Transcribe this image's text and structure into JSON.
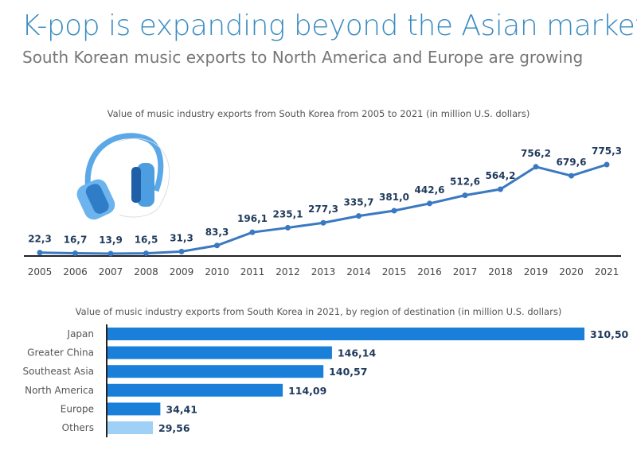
{
  "header": {
    "title": "K-pop is expanding beyond the Asian market",
    "subtitle": "South Korean music exports to North America and Europe are growing"
  },
  "colors": {
    "title": "#3a8cc0",
    "line": "#3a78c2",
    "bar": "#1a7fd9",
    "bar_others": "#9fd0f5",
    "value_label": "#1f3a5c"
  },
  "icons": [
    "headphones-icon"
  ],
  "chart_data": [
    {
      "type": "line",
      "title": "Value of music industry exports from South Korea from 2005 to 2021 (in million U.S. dollars)",
      "categories": [
        "2005",
        "2006",
        "2007",
        "2008",
        "2009",
        "2010",
        "2011",
        "2012",
        "2013",
        "2014",
        "2015",
        "2016",
        "2017",
        "2018",
        "2019",
        "2020",
        "2021"
      ],
      "values": [
        22.3,
        16.7,
        13.9,
        16.5,
        31.3,
        83.3,
        196.1,
        235.1,
        277.3,
        335.7,
        381.0,
        442.6,
        512.6,
        564.2,
        756.2,
        679.6,
        775.3
      ],
      "labels": [
        "22,3",
        "16,7",
        "13,9",
        "16,5",
        "31,3",
        "83,3",
        "196,1",
        "235,1",
        "277,3",
        "335,7",
        "381,0",
        "442,6",
        "512,6",
        "564,2",
        "756,2",
        "679,6",
        "775,3"
      ],
      "grid": false
    },
    {
      "type": "bar",
      "orientation": "horizontal",
      "title": "Value of music industry exports from South Korea in 2021, by region of destination (in million U.S. dollars)",
      "categories": [
        "Japan",
        "Greater China",
        "Southeast Asia",
        "North America",
        "Europe",
        "Others"
      ],
      "values": [
        310.5,
        146.14,
        140.57,
        114.09,
        34.41,
        29.56
      ],
      "labels": [
        "310,50",
        "146,14",
        "140,57",
        "114,09",
        "34,41",
        "29,56"
      ],
      "grid": false
    }
  ]
}
